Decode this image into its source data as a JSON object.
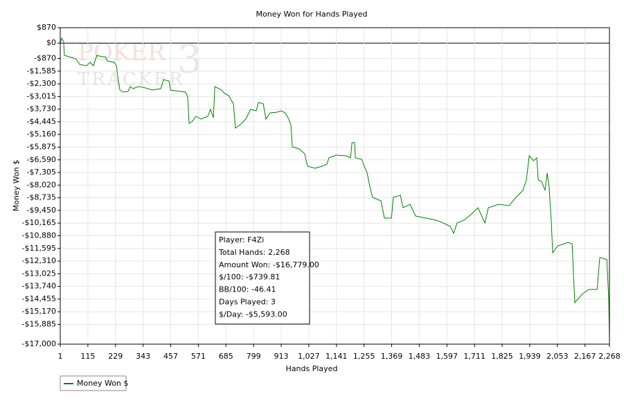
{
  "chart_data": {
    "type": "line",
    "title": "Money Won for Hands Played",
    "x_label": "Hands Played",
    "y_label": "Money Won $",
    "watermark": [
      "POKER",
      "TRACKER",
      "3"
    ],
    "xlim": [
      1,
      2268
    ],
    "ylim": [
      -17000,
      870
    ],
    "grid": true,
    "legend": "bottom-left",
    "xticks": [
      1,
      115,
      229,
      343,
      457,
      571,
      685,
      799,
      913,
      {
        "value": 1027,
        "label": "1,027"
      },
      {
        "value": 1141,
        "label": "1,141"
      },
      {
        "value": 1255,
        "label": "1,255"
      },
      {
        "value": 1369,
        "label": "1,369"
      },
      {
        "value": 1483,
        "label": "1,483"
      },
      {
        "value": 1597,
        "label": "1,597"
      },
      {
        "value": 1711,
        "label": "1,711"
      },
      {
        "value": 1825,
        "label": "1,825"
      },
      {
        "value": 1939,
        "label": "1,939"
      },
      {
        "value": 2053,
        "label": "2,053"
      },
      {
        "value": 2167,
        "label": "2,167"
      },
      {
        "value": 2268,
        "label": "2,268"
      }
    ],
    "yticks": [
      {
        "value": 870,
        "label": "$870"
      },
      {
        "value": 0,
        "label": "$0"
      },
      {
        "value": -870,
        "label": "-$870"
      },
      {
        "value": -1585,
        "label": "-$1,585"
      },
      {
        "value": -2300,
        "label": "-$2,300"
      },
      {
        "value": -3015,
        "label": "-$3,015"
      },
      {
        "value": -3730,
        "label": "-$3,730"
      },
      {
        "value": -4445,
        "label": "-$4,445"
      },
      {
        "value": -5160,
        "label": "-$5,160"
      },
      {
        "value": -5875,
        "label": "-$5,875"
      },
      {
        "value": -6590,
        "label": "-$6,590"
      },
      {
        "value": -7305,
        "label": "-$7,305"
      },
      {
        "value": -8020,
        "label": "-$8,020"
      },
      {
        "value": -8735,
        "label": "-$8,735"
      },
      {
        "value": -9450,
        "label": "-$9,450"
      },
      {
        "value": -10165,
        "label": "-$10,165"
      },
      {
        "value": -10880,
        "label": "-$10,880"
      },
      {
        "value": -11595,
        "label": "-$11,595"
      },
      {
        "value": -12310,
        "label": "-$12,310"
      },
      {
        "value": -13025,
        "label": "-$13,025"
      },
      {
        "value": -13740,
        "label": "-$13,740"
      },
      {
        "value": -14455,
        "label": "-$14,455"
      },
      {
        "value": -15170,
        "label": "-$15,170"
      },
      {
        "value": -15885,
        "label": "-$15,885"
      },
      {
        "value": -17000,
        "label": "-$17,000"
      }
    ],
    "stats": [
      "Player: F4Zi",
      "Total Hands: 2,268",
      "Amount Won: -$16,779.00",
      "$/100: -$739.81",
      "BB/100: -46.41",
      "Days Played: 3",
      "$/Day: -$5,593.00"
    ],
    "x": [
      1,
      7,
      15,
      18,
      38,
      66,
      81,
      110,
      124,
      138,
      152,
      175,
      187,
      195,
      224,
      233,
      238,
      247,
      261,
      281,
      290,
      301,
      324,
      353,
      381,
      416,
      427,
      450,
      456,
      518,
      527,
      533,
      547,
      561,
      581,
      610,
      621,
      633,
      639,
      667,
      679,
      696,
      716,
      724,
      744,
      767,
      787,
      810,
      819,
      839,
      850,
      867,
      896,
      913,
      930,
      944,
      953,
      959,
      987,
      1010,
      1022,
      1053,
      1082,
      1102,
      1110,
      1139,
      1182,
      1199,
      1205,
      1216,
      1219,
      1245,
      1256,
      1268,
      1276,
      1290,
      1325,
      1339,
      1368,
      1376,
      1405,
      1416,
      1445,
      1468,
      1510,
      1553,
      1582,
      1611,
      1625,
      1639,
      1668,
      1696,
      1725,
      1754,
      1768,
      1811,
      1854,
      1882,
      1911,
      1925,
      1937,
      1954,
      1968,
      1974,
      1988,
      2002,
      2011,
      2019,
      2028,
      2034,
      2054,
      2082,
      2097,
      2114,
      2120,
      2125,
      2143,
      2154,
      2183,
      2217,
      2228,
      2240,
      2257,
      2262,
      2265,
      2268
    ],
    "series": [
      {
        "name": "Money Won $",
        "color": "#008000",
        "values": [
          0,
          284,
          88,
          -694,
          -772,
          -890,
          -1202,
          -1280,
          -1085,
          -1280,
          -694,
          -772,
          -772,
          -1007,
          -1085,
          -1280,
          -1867,
          -2649,
          -2766,
          -2727,
          -2453,
          -2571,
          -2453,
          -2532,
          -2649,
          -2571,
          -2062,
          -2141,
          -2649,
          -2766,
          -3040,
          -4526,
          -4408,
          -4135,
          -4291,
          -4135,
          -3744,
          -4213,
          -2453,
          -2649,
          -2844,
          -2962,
          -3431,
          -4799,
          -4604,
          -4291,
          -3744,
          -3822,
          -3353,
          -3431,
          -4291,
          -3939,
          -3900,
          -3822,
          -3939,
          -4291,
          -4604,
          -5855,
          -5972,
          -6246,
          -6950,
          -7067,
          -6950,
          -6833,
          -6481,
          -6324,
          -6363,
          -6481,
          -5621,
          -5621,
          -6481,
          -6559,
          -6950,
          -7341,
          -7927,
          -8710,
          -8905,
          -9882,
          -9882,
          -8710,
          -8592,
          -9296,
          -9100,
          -9765,
          -9882,
          -10000,
          -10156,
          -10352,
          -10743,
          -10156,
          -10000,
          -9687,
          -9296,
          -10156,
          -9296,
          -9100,
          -9178,
          -8710,
          -8318,
          -7732,
          -6363,
          -6637,
          -6481,
          -7732,
          -7810,
          -8318,
          -7341,
          -8124,
          -10078,
          -11838,
          -11447,
          -11329,
          -11251,
          -11329,
          -13206,
          -14653,
          -14379,
          -14184,
          -13910,
          -13910,
          -12111,
          -12150,
          -12229,
          -13597,
          -14457,
          -16779
        ]
      }
    ]
  }
}
